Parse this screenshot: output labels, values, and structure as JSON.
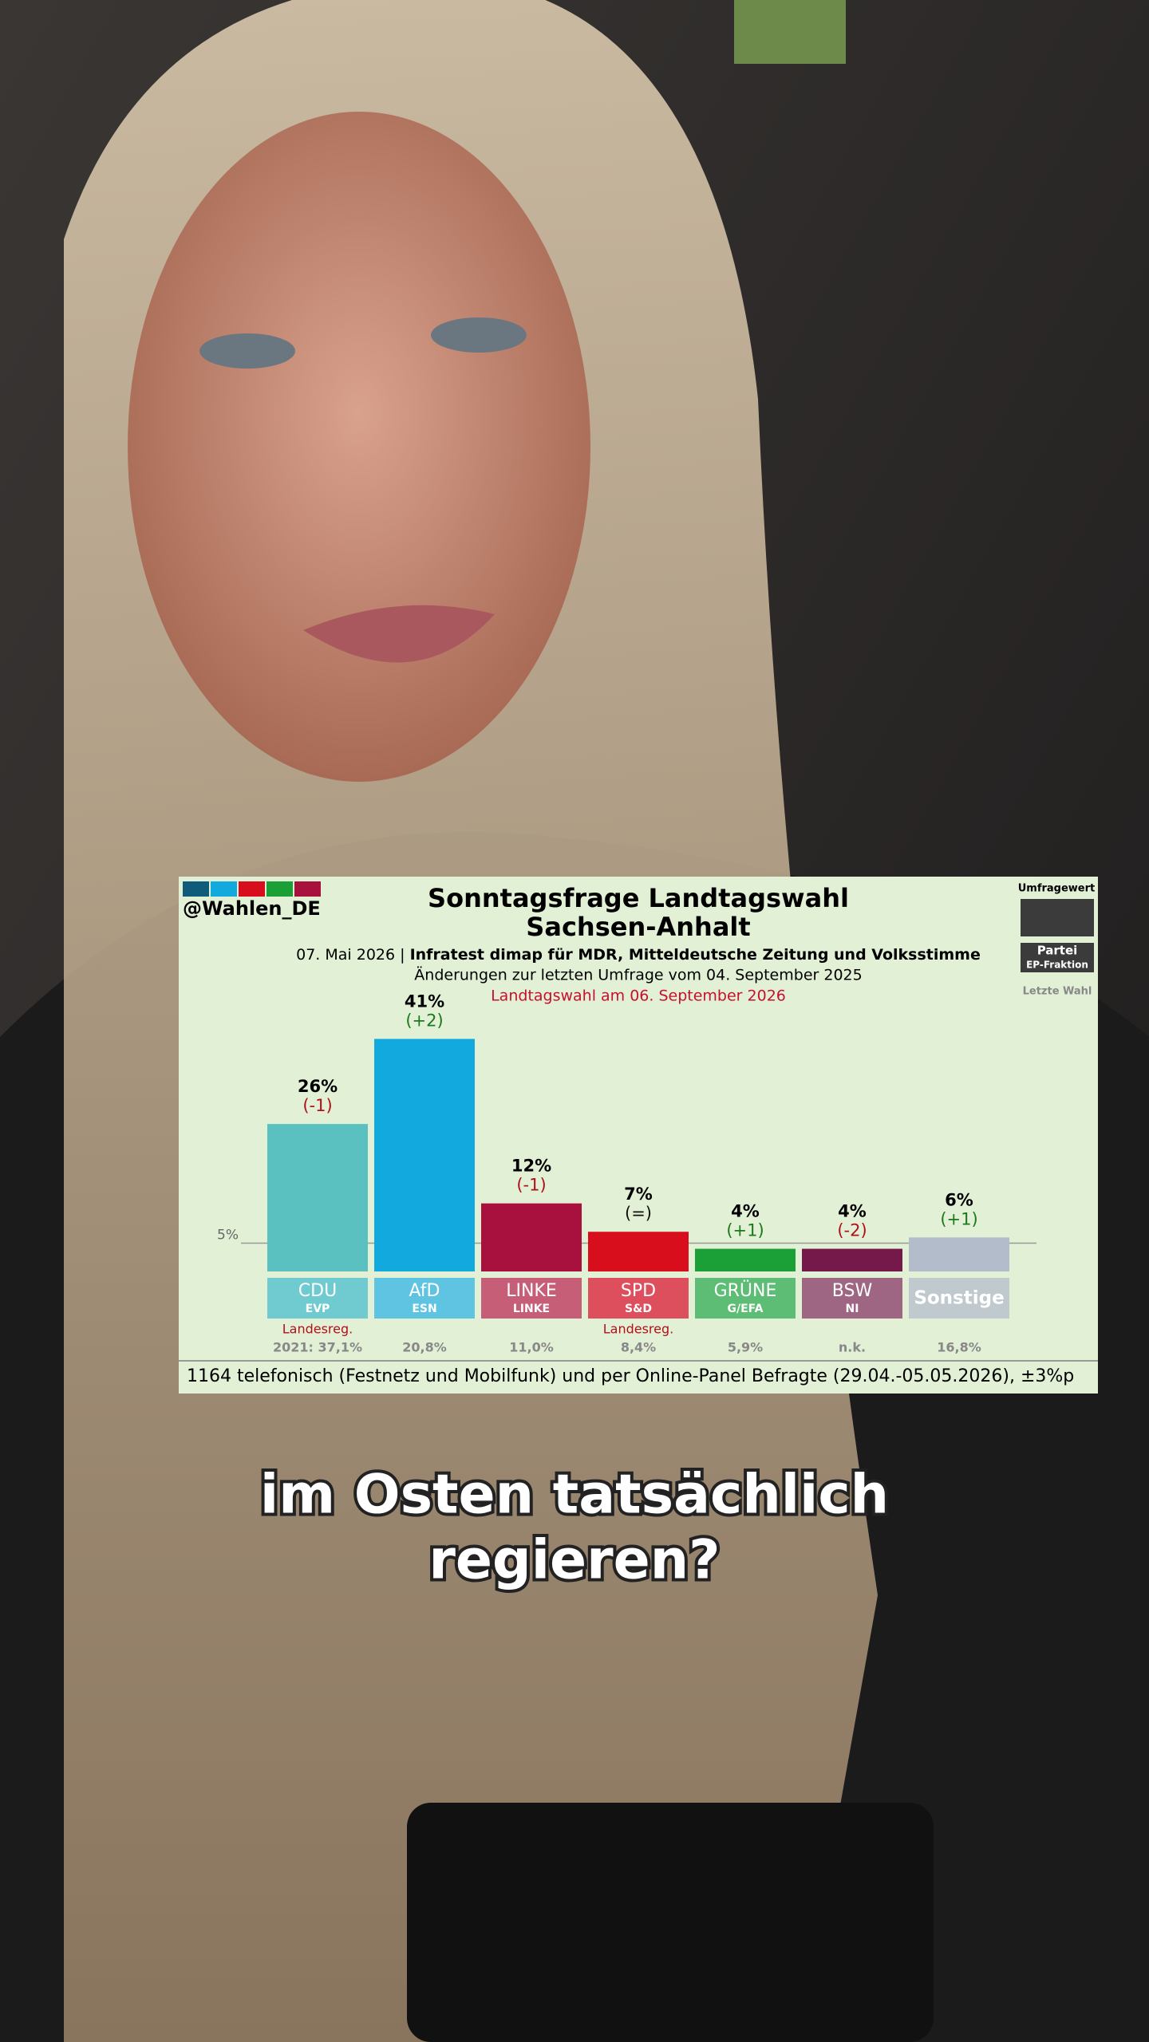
{
  "handle": "@Wahlen_DE",
  "legend_box": {
    "top": "Umfragewert",
    "party": "Partei",
    "faction": "EP-Fraktion",
    "bottom": "Letzte Wahl"
  },
  "chart_data": {
    "type": "bar",
    "title_lines": [
      "Sonntagsfrage Landtagswahl",
      "Sachsen-Anhalt"
    ],
    "date": "07. Mai 2026 |",
    "source": "Infratest dimap für MDR, Mitteldeutsche Zeitung und Volksstimme",
    "changes_note": "Änderungen zur letzten Umfrage vom 04. September 2025",
    "election_note": "Landtagswahl am 06. September 2026",
    "categories": [
      "CDU",
      "AfD",
      "LINKE",
      "SPD",
      "GRÜNE",
      "BSW",
      "Sonstige"
    ],
    "groups": [
      "EVP",
      "ESN",
      "LINKE",
      "S&D",
      "G/EFA",
      "NI",
      null
    ],
    "values": [
      26,
      41,
      12,
      7,
      4,
      4,
      6
    ],
    "value_labels": [
      "26%",
      "41%",
      "12%",
      "7%",
      "4%",
      "4%",
      "6%"
    ],
    "changes": [
      "(-1)",
      "(+2)",
      "(-1)",
      "(=)",
      "(+1)",
      "(-2)",
      "(+1)"
    ],
    "colors": [
      "#5bc1c0",
      "#12a9df",
      "#a8103e",
      "#d90e1d",
      "#1aa037",
      "#74194a",
      "#b3bccb"
    ],
    "label_colors": [
      "#6fcbd0",
      "#5fc4e2",
      "#c75e77",
      "#dd4f5c",
      "#5dbd74",
      "#9e6682",
      "#c0cace"
    ],
    "government": [
      "Landesreg.",
      null,
      null,
      "Landesreg.",
      null,
      null,
      null
    ],
    "last_election": [
      "2021: 37,1%",
      "20,8%",
      "11,0%",
      "8,4%",
      "5,9%",
      "n.k.",
      "16,8%"
    ],
    "threshold": {
      "value": 5,
      "label": "5%"
    },
    "ylim": [
      0,
      45
    ],
    "footer": "1164 telefonisch (Festnetz und Mobilfunk) und per Online-Panel Befragte (29.04.-05.05.2026), ±3%p"
  },
  "caption": [
    "im Osten tatsächlich",
    "regieren?"
  ]
}
